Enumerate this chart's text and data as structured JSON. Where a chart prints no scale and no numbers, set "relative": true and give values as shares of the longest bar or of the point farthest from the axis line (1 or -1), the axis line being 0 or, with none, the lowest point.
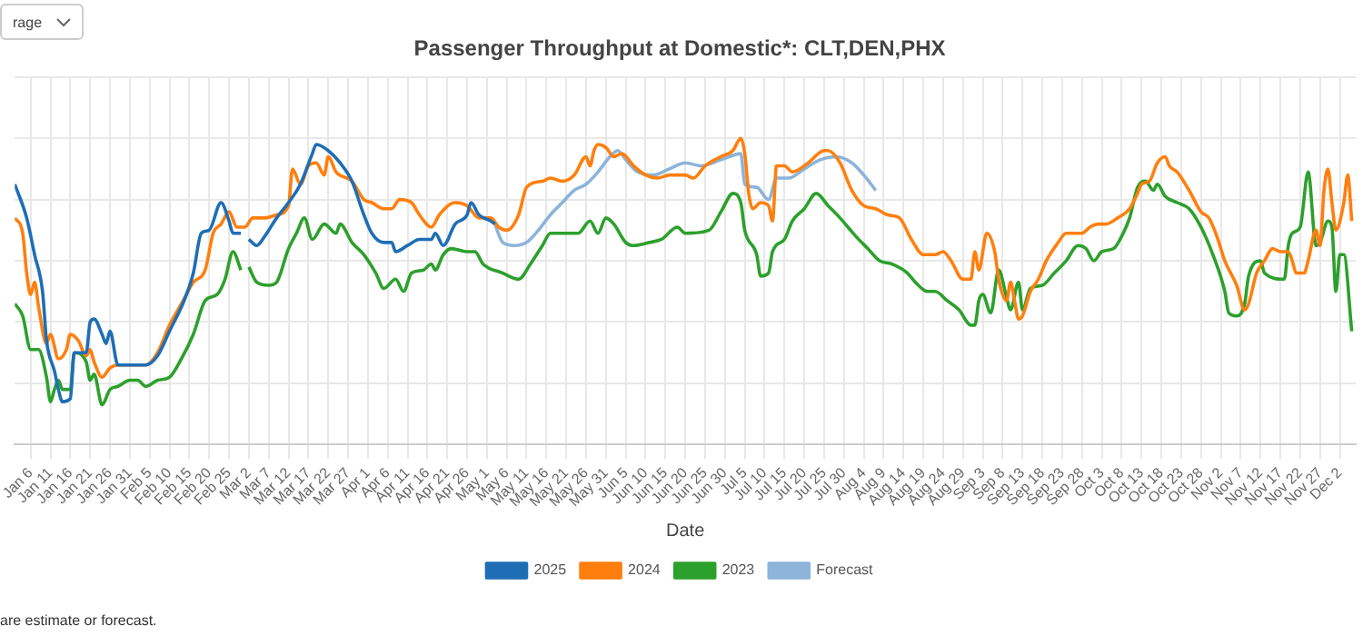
{
  "chart_data": {
    "type": "line",
    "title": "Passenger Throughput at Domestic*: CLT,DEN,PHX",
    "xlabel": "Date",
    "relative": true,
    "grid": true,
    "legend": "bottom",
    "marker": "none",
    "line_style": "solid",
    "annotations": [
      "rage",
      "are estimate or forecast."
    ],
    "xlim": [
      "--01-02",
      "--12-06"
    ],
    "xticks": [
      {
        "value": "--01-06",
        "label": "Jan 6"
      },
      {
        "value": "--01-11",
        "label": "Jan 11"
      },
      {
        "value": "--01-16",
        "label": "Jan 16"
      },
      {
        "value": "--01-21",
        "label": "Jan 21"
      },
      {
        "value": "--01-26",
        "label": "Jan 26"
      },
      {
        "value": "--01-31",
        "label": "Jan 31"
      },
      {
        "value": "--02-05",
        "label": "Feb 5"
      },
      {
        "value": "--02-10",
        "label": "Feb 10"
      },
      {
        "value": "--02-15",
        "label": "Feb 15"
      },
      {
        "value": "--02-20",
        "label": "Feb 20"
      },
      {
        "value": "--02-25",
        "label": "Feb 25"
      },
      {
        "value": "--03-02",
        "label": "Mar 2"
      },
      {
        "value": "--03-07",
        "label": "Mar 7"
      },
      {
        "value": "--03-12",
        "label": "Mar 12"
      },
      {
        "value": "--03-17",
        "label": "Mar 17"
      },
      {
        "value": "--03-22",
        "label": "Mar 22"
      },
      {
        "value": "--03-27",
        "label": "Mar 27"
      },
      {
        "value": "--04-01",
        "label": "Apr 1"
      },
      {
        "value": "--04-06",
        "label": "Apr 6"
      },
      {
        "value": "--04-11",
        "label": "Apr 11"
      },
      {
        "value": "--04-16",
        "label": "Apr 16"
      },
      {
        "value": "--04-21",
        "label": "Apr 21"
      },
      {
        "value": "--04-26",
        "label": "Apr 26"
      },
      {
        "value": "--05-01",
        "label": "May 1"
      },
      {
        "value": "--05-06",
        "label": "May 6"
      },
      {
        "value": "--05-11",
        "label": "May 11"
      },
      {
        "value": "--05-16",
        "label": "May 16"
      },
      {
        "value": "--05-21",
        "label": "May 21"
      },
      {
        "value": "--05-26",
        "label": "May 26"
      },
      {
        "value": "--05-31",
        "label": "May 31"
      },
      {
        "value": "--06-05",
        "label": "Jun 5"
      },
      {
        "value": "--06-10",
        "label": "Jun 10"
      },
      {
        "value": "--06-15",
        "label": "Jun 15"
      },
      {
        "value": "--06-20",
        "label": "Jun 20"
      },
      {
        "value": "--06-25",
        "label": "Jun 25"
      },
      {
        "value": "--06-30",
        "label": "Jun 30"
      },
      {
        "value": "--07-05",
        "label": "Jul 5"
      },
      {
        "value": "--07-10",
        "label": "Jul 10"
      },
      {
        "value": "--07-15",
        "label": "Jul 15"
      },
      {
        "value": "--07-20",
        "label": "Jul 20"
      },
      {
        "value": "--07-25",
        "label": "Jul 25"
      },
      {
        "value": "--07-30",
        "label": "Jul 30"
      },
      {
        "value": "--08-04",
        "label": "Aug 4"
      },
      {
        "value": "--08-09",
        "label": "Aug 9"
      },
      {
        "value": "--08-14",
        "label": "Aug 14"
      },
      {
        "value": "--08-19",
        "label": "Aug 19"
      },
      {
        "value": "--08-24",
        "label": "Aug 24"
      },
      {
        "value": "--08-29",
        "label": "Aug 29"
      },
      {
        "value": "--09-03",
        "label": "Sep 3"
      },
      {
        "value": "--09-08",
        "label": "Sep 8"
      },
      {
        "value": "--09-13",
        "label": "Sep 13"
      },
      {
        "value": "--09-18",
        "label": "Sep 18"
      },
      {
        "value": "--09-23",
        "label": "Sep 23"
      },
      {
        "value": "--09-28",
        "label": "Sep 28"
      },
      {
        "value": "--10-03",
        "label": "Oct 3"
      },
      {
        "value": "--10-08",
        "label": "Oct 8"
      },
      {
        "value": "--10-13",
        "label": "Oct 13"
      },
      {
        "value": "--10-18",
        "label": "Oct 18"
      },
      {
        "value": "--10-23",
        "label": "Oct 23"
      },
      {
        "value": "--10-28",
        "label": "Oct 28"
      },
      {
        "value": "--11-02",
        "label": "Nov 2"
      },
      {
        "value": "--11-07",
        "label": "Nov 7"
      },
      {
        "value": "--11-12",
        "label": "Nov 12"
      },
      {
        "value": "--11-17",
        "label": "Nov 17"
      },
      {
        "value": "--11-22",
        "label": "Nov 22"
      },
      {
        "value": "--11-27",
        "label": "Nov 27"
      },
      {
        "value": "--12-02",
        "label": "Dec 2"
      }
    ],
    "series": [
      {
        "name": "2025",
        "color": "#1f6eb5",
        "x": [
          "--01-02",
          "--01-05",
          "--01-07",
          "--01-09",
          "--01-10",
          "--01-12",
          "--01-13",
          "--01-14",
          "--01-16",
          "--01-17",
          "--01-20",
          "--01-21",
          "--01-22",
          "--01-24",
          "--01-25",
          "--01-26",
          "--01-28",
          "--01-30",
          "--02-04",
          "--02-07",
          "--02-10",
          "--02-14",
          "--02-16",
          "--02-18",
          "--02-20",
          "--02-23",
          "--02-25",
          "--02-26",
          "--02-28",
          "--03-01",
          "--03-02",
          "--03-04",
          "--03-06",
          "--03-09",
          "--03-12",
          "--03-15",
          "--03-18",
          "--03-19",
          "--03-22",
          "--03-25",
          "--03-28",
          "--03-31",
          "--04-02",
          "--04-05",
          "--04-07",
          "--04-08",
          "--04-11",
          "--04-14",
          "--04-17",
          "--04-18",
          "--04-20",
          "--04-23",
          "--04-26",
          "--04-27",
          "--04-29",
          "--05-02",
          "--05-03"
        ],
        "values": [
          0.85,
          0.74,
          0.62,
          0.5,
          0.34,
          0.24,
          0.18,
          0.14,
          0.15,
          0.3,
          0.3,
          0.4,
          0.41,
          0.36,
          0.33,
          0.37,
          0.26,
          0.26,
          0.26,
          0.29,
          0.37,
          0.48,
          0.56,
          0.69,
          0.7,
          0.79,
          0.73,
          0.69,
          0.69,
          null,
          0.67,
          0.65,
          0.68,
          0.74,
          0.79,
          0.85,
          0.95,
          0.98,
          0.96,
          0.92,
          0.86,
          0.75,
          0.69,
          0.66,
          0.66,
          0.63,
          0.65,
          0.67,
          0.67,
          0.69,
          0.65,
          0.72,
          0.75,
          0.79,
          0.75,
          0.73,
          0.72
        ]
      },
      {
        "name": "2024",
        "color": "#ff7f0e",
        "x": [
          "--01-02",
          "--01-04",
          "--01-05",
          "--01-06",
          "--01-07",
          "--01-08",
          "--01-10",
          "--01-11",
          "--01-13",
          "--01-15",
          "--01-16",
          "--01-18",
          "--01-20",
          "--01-21",
          "--01-22",
          "--01-24",
          "--01-26",
          "--01-28",
          "--02-01",
          "--02-04",
          "--02-07",
          "--02-10",
          "--02-13",
          "--02-16",
          "--02-19",
          "--02-21",
          "--02-23",
          "--02-25",
          "--02-27",
          "--03-01",
          "--03-03",
          "--03-06",
          "--03-09",
          "--03-12",
          "--03-13",
          "--03-15",
          "--03-17",
          "--03-19",
          "--03-21",
          "--03-22",
          "--03-24",
          "--03-28",
          "--03-31",
          "--04-02",
          "--04-05",
          "--04-07",
          "--04-09",
          "--04-12",
          "--04-14",
          "--04-17",
          "--04-19",
          "--04-23",
          "--04-26",
          "--04-29",
          "--05-02",
          "--05-04",
          "--05-06",
          "--05-09",
          "--05-11",
          "--05-15",
          "--05-17",
          "--05-20",
          "--05-23",
          "--05-26",
          "--05-27",
          "--05-28",
          "--05-29",
          "--05-31",
          "--06-02",
          "--06-04",
          "--06-07",
          "--06-10",
          "--06-13",
          "--06-16",
          "--06-20",
          "--06-22",
          "--06-25",
          "--06-29",
          "--07-02",
          "--07-04",
          "--07-05",
          "--07-06",
          "--07-07",
          "--07-09",
          "--07-11",
          "--07-12",
          "--07-13",
          "--07-15",
          "--07-17",
          "--07-21",
          "--07-25",
          "--07-26",
          "--07-29",
          "--08-01",
          "--08-04",
          "--08-07",
          "--08-10",
          "--08-13",
          "--08-16",
          "--08-19",
          "--08-22",
          "--08-24",
          "--08-26",
          "--08-29",
          "--08-31",
          "--09-01",
          "--09-02",
          "--09-04",
          "--09-06",
          "--09-07",
          "--09-09",
          "--09-10",
          "--09-11",
          "--09-12",
          "--09-13",
          "--09-15",
          "--09-17",
          "--09-19",
          "--09-22",
          "--09-24",
          "--09-28",
          "--09-30",
          "--10-02",
          "--10-04",
          "--10-07",
          "--10-10",
          "--10-12",
          "--10-13",
          "--10-15",
          "--10-17",
          "--10-19",
          "--10-20",
          "--10-22",
          "--10-25",
          "--10-28",
          "--10-30",
          "--11-01",
          "--11-03",
          "--11-06",
          "--11-08",
          "--11-09",
          "--11-11",
          "--11-13",
          "--11-15",
          "--11-17",
          "--11-19",
          "--11-20",
          "--11-21",
          "--11-23",
          "--11-24",
          "--11-26",
          "--11-27",
          "--11-28",
          "--11-29",
          "--11-30",
          "--12-01",
          "--12-03",
          "--12-04",
          "--12-05"
        ],
        "values": [
          0.74,
          0.69,
          0.56,
          0.49,
          0.53,
          0.45,
          0.33,
          0.36,
          0.28,
          0.31,
          0.36,
          0.34,
          0.29,
          0.31,
          0.27,
          0.22,
          0.25,
          0.26,
          0.26,
          0.26,
          0.3,
          0.39,
          0.46,
          0.53,
          0.57,
          0.69,
          0.72,
          0.76,
          0.71,
          0.71,
          0.74,
          0.74,
          0.75,
          0.78,
          0.9,
          0.85,
          0.91,
          0.92,
          0.88,
          0.94,
          0.89,
          0.86,
          0.8,
          0.79,
          0.77,
          0.77,
          0.8,
          0.79,
          0.75,
          0.71,
          0.75,
          0.79,
          0.78,
          0.74,
          0.74,
          0.71,
          0.7,
          0.75,
          0.84,
          0.86,
          0.87,
          0.86,
          0.88,
          0.94,
          0.91,
          0.96,
          0.98,
          0.97,
          0.94,
          0.95,
          0.91,
          0.88,
          0.87,
          0.88,
          0.88,
          0.87,
          0.91,
          0.94,
          0.96,
          1.0,
          0.95,
          0.82,
          0.77,
          0.79,
          0.78,
          0.73,
          0.91,
          0.91,
          0.89,
          0.92,
          0.96,
          0.96,
          0.92,
          0.83,
          0.78,
          0.77,
          0.75,
          0.74,
          0.67,
          0.62,
          0.62,
          0.63,
          0.6,
          0.54,
          0.54,
          0.63,
          0.57,
          0.69,
          0.63,
          0.54,
          0.47,
          0.53,
          0.47,
          0.41,
          0.42,
          0.5,
          0.54,
          0.6,
          0.66,
          0.69,
          0.69,
          0.71,
          0.72,
          0.72,
          0.74,
          0.77,
          0.82,
          0.85,
          0.86,
          0.92,
          0.94,
          0.91,
          0.89,
          0.83,
          0.76,
          0.74,
          0.68,
          0.6,
          0.52,
          0.44,
          0.46,
          0.56,
          0.6,
          0.64,
          0.63,
          0.63,
          0.6,
          0.56,
          0.56,
          0.6,
          0.7,
          0.65,
          0.83,
          0.9,
          0.79,
          0.7,
          0.79,
          0.88,
          0.73
        ]
      },
      {
        "name": "2023",
        "color": "#2ca02c",
        "x": [
          "--01-02",
          "--01-04",
          "--01-06",
          "--01-08",
          "--01-10",
          "--01-11",
          "--01-12",
          "--01-13",
          "--01-14",
          "--01-16",
          "--01-17",
          "--01-20",
          "--01-21",
          "--01-22",
          "--01-24",
          "--01-26",
          "--01-28",
          "--01-31",
          "--02-02",
          "--02-04",
          "--02-07",
          "--02-10",
          "--02-13",
          "--02-16",
          "--02-19",
          "--02-22",
          "--02-24",
          "--02-26",
          "--02-28",
          "--03-01",
          "--03-02",
          "--03-04",
          "--03-07",
          "--03-09",
          "--03-12",
          "--03-14",
          "--03-16",
          "--03-18",
          "--03-21",
          "--03-24",
          "--03-25",
          "--03-28",
          "--03-31",
          "--04-03",
          "--04-05",
          "--04-08",
          "--04-10",
          "--04-12",
          "--04-15",
          "--04-17",
          "--04-18",
          "--04-20",
          "--04-22",
          "--04-26",
          "--04-28",
          "--04-30",
          "--05-05",
          "--05-09",
          "--05-12",
          "--05-15",
          "--05-17",
          "--05-21",
          "--05-24",
          "--05-27",
          "--05-29",
          "--05-31",
          "--06-02",
          "--06-05",
          "--06-07",
          "--06-11",
          "--06-14",
          "--06-18",
          "--06-20",
          "--06-26",
          "--06-29",
          "--07-02",
          "--07-04",
          "--07-05",
          "--07-08",
          "--07-09",
          "--07-11",
          "--07-12",
          "--07-15",
          "--07-17",
          "--07-20",
          "--07-23",
          "--07-26",
          "--07-29",
          "--08-02",
          "--08-05",
          "--08-08",
          "--08-11",
          "--08-15",
          "--08-17",
          "--08-20",
          "--08-22",
          "--08-25",
          "--08-28",
          "--08-31",
          "--09-01",
          "--09-02",
          "--09-03",
          "--09-05",
          "--09-07",
          "--09-09",
          "--09-10",
          "--09-12",
          "--09-13",
          "--09-15",
          "--09-18",
          "--09-21",
          "--09-24",
          "--09-27",
          "--09-29",
          "--10-01",
          "--10-03",
          "--10-06",
          "--10-08",
          "--10-10",
          "--10-12",
          "--10-14",
          "--10-16",
          "--10-17",
          "--10-19",
          "--10-22",
          "--10-25",
          "--10-28",
          "--10-31",
          "--11-03",
          "--11-04",
          "--11-06",
          "--11-08",
          "--11-09",
          "--11-12",
          "--11-13",
          "--11-18",
          "--11-19",
          "--11-20",
          "--11-22",
          "--11-24",
          "--11-26",
          "--11-27",
          "--11-29",
          "--11-30",
          "--12-01",
          "--12-02",
          "--12-03",
          "--12-05"
        ],
        "values": [
          0.46,
          0.42,
          0.31,
          0.31,
          0.22,
          0.14,
          0.18,
          0.21,
          0.18,
          0.18,
          0.3,
          0.27,
          0.21,
          0.23,
          0.13,
          0.18,
          0.19,
          0.21,
          0.21,
          0.19,
          0.21,
          0.22,
          0.28,
          0.36,
          0.47,
          0.49,
          0.54,
          0.63,
          0.57,
          null,
          0.58,
          0.53,
          0.52,
          0.53,
          0.64,
          0.69,
          0.74,
          0.67,
          0.72,
          0.69,
          0.72,
          0.66,
          0.62,
          0.56,
          0.51,
          0.54,
          0.5,
          0.56,
          0.57,
          0.59,
          0.57,
          0.62,
          0.64,
          0.63,
          0.63,
          0.59,
          0.56,
          0.54,
          0.59,
          0.65,
          0.69,
          0.69,
          0.69,
          0.73,
          0.69,
          0.74,
          0.72,
          0.66,
          0.65,
          0.66,
          0.67,
          0.71,
          0.69,
          0.7,
          0.76,
          0.82,
          0.79,
          0.7,
          0.62,
          0.55,
          0.56,
          0.63,
          0.67,
          0.73,
          0.77,
          0.82,
          0.78,
          0.74,
          0.68,
          0.64,
          0.6,
          0.59,
          0.56,
          0.53,
          0.5,
          0.5,
          0.47,
          0.44,
          0.39,
          0.39,
          0.47,
          0.49,
          0.43,
          0.57,
          0.48,
          0.44,
          0.53,
          0.44,
          0.51,
          0.52,
          0.56,
          0.6,
          0.65,
          0.64,
          0.6,
          0.63,
          0.64,
          0.68,
          0.74,
          0.84,
          0.86,
          0.83,
          0.85,
          0.81,
          0.79,
          0.77,
          0.71,
          0.62,
          0.5,
          0.43,
          0.42,
          0.46,
          0.55,
          0.6,
          0.56,
          0.54,
          0.65,
          0.69,
          0.71,
          0.89,
          0.65,
          0.66,
          0.73,
          0.71,
          0.5,
          0.62,
          0.62,
          0.37
        ]
      },
      {
        "name": "Forecast",
        "color": "#8db4da",
        "x": [
          "--05-03",
          "--05-05",
          "--05-08",
          "--05-11",
          "--05-14",
          "--05-17",
          "--05-20",
          "--05-23",
          "--05-26",
          "--05-29",
          "--06-01",
          "--06-03",
          "--06-05",
          "--06-08",
          "--06-12",
          "--06-16",
          "--06-20",
          "--06-24",
          "--06-29",
          "--07-04",
          "--07-05",
          "--07-08",
          "--07-11",
          "--07-13",
          "--07-16",
          "--07-20",
          "--07-24",
          "--07-28",
          "--08-01",
          "--08-04",
          "--08-07"
        ],
        "values": [
          0.72,
          0.66,
          0.65,
          0.66,
          0.7,
          0.75,
          0.79,
          0.83,
          0.85,
          0.89,
          0.94,
          0.96,
          0.93,
          0.89,
          0.88,
          0.9,
          0.92,
          0.91,
          0.93,
          0.95,
          0.85,
          0.84,
          0.8,
          0.87,
          0.87,
          0.9,
          0.93,
          0.94,
          0.92,
          0.88,
          0.83
        ]
      }
    ]
  }
}
